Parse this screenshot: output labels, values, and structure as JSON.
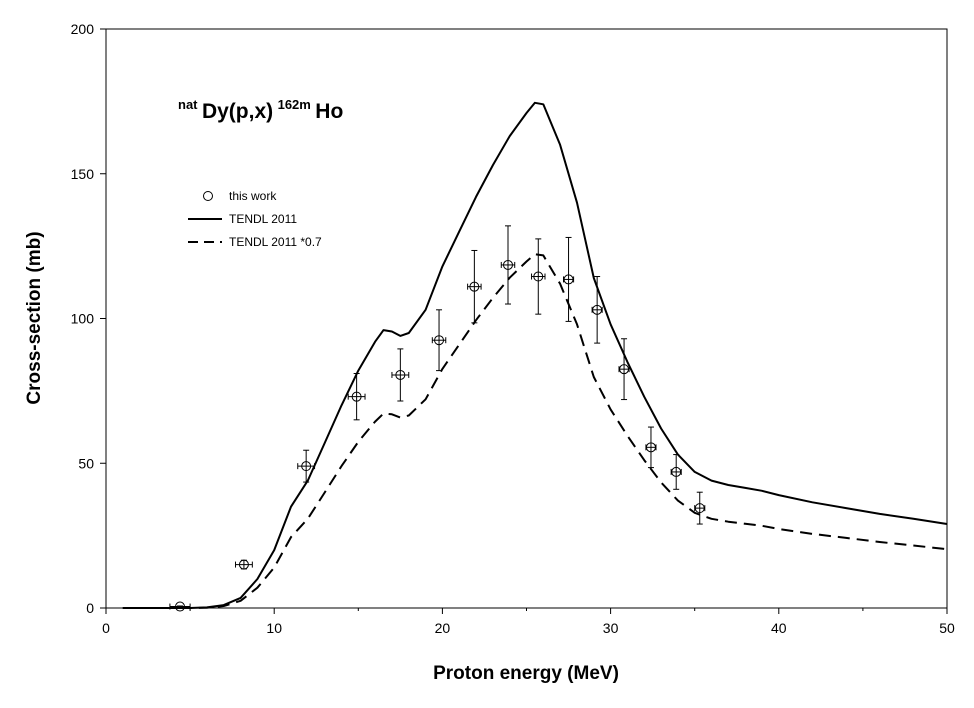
{
  "chart_data": {
    "type": "scatter",
    "title": "",
    "reaction_label": {
      "pre_sup": "nat",
      "base1": "Dy(p,x)",
      "mid_sup": "162m",
      "base2": "Ho"
    },
    "xlabel": "Proton energy (MeV)",
    "ylabel": "Cross-section (mb)",
    "xlim": [
      0,
      50
    ],
    "ylim": [
      0,
      200
    ],
    "xticks": [
      0,
      10,
      20,
      30,
      40,
      50
    ],
    "yticks": [
      0,
      50,
      100,
      150,
      200
    ],
    "grid": false,
    "legend_position": "upper-left",
    "series": [
      {
        "name": "this work",
        "kind": "points",
        "marker": "open-circle",
        "points": [
          {
            "x": 4.4,
            "y": 0.5,
            "xerr": 0.6,
            "yerr": 0.2
          },
          {
            "x": 8.2,
            "y": 15.0,
            "xerr": 0.5,
            "yerr": 1.5
          },
          {
            "x": 11.9,
            "y": 49.0,
            "xerr": 0.5,
            "yerr": 5.5
          },
          {
            "x": 14.9,
            "y": 73.0,
            "xerr": 0.5,
            "yerr": 8.0
          },
          {
            "x": 17.5,
            "y": 80.5,
            "xerr": 0.5,
            "yerr": 9.0
          },
          {
            "x": 19.8,
            "y": 92.5,
            "xerr": 0.4,
            "yerr": 10.5
          },
          {
            "x": 21.9,
            "y": 111.0,
            "xerr": 0.4,
            "yerr": 12.5
          },
          {
            "x": 23.9,
            "y": 118.5,
            "xerr": 0.4,
            "yerr": 13.5
          },
          {
            "x": 25.7,
            "y": 114.5,
            "xerr": 0.4,
            "yerr": 13.0
          },
          {
            "x": 27.5,
            "y": 113.5,
            "xerr": 0.3,
            "yerr": 14.5
          },
          {
            "x": 29.2,
            "y": 103.0,
            "xerr": 0.3,
            "yerr": 11.5
          },
          {
            "x": 30.8,
            "y": 82.5,
            "xerr": 0.3,
            "yerr": 10.5
          },
          {
            "x": 32.4,
            "y": 55.5,
            "xerr": 0.3,
            "yerr": 7.0
          },
          {
            "x": 33.9,
            "y": 47.0,
            "xerr": 0.3,
            "yerr": 6.0
          },
          {
            "x": 35.3,
            "y": 34.5,
            "xerr": 0.3,
            "yerr": 5.5
          }
        ]
      },
      {
        "name": "TENDL 2011",
        "kind": "line",
        "dash": "solid",
        "x": [
          1,
          2,
          3,
          4,
          5,
          6,
          7,
          8,
          9,
          10,
          11,
          12,
          13,
          14,
          15,
          16,
          16.5,
          17,
          17.5,
          18,
          19,
          20,
          21,
          22,
          23,
          24,
          25,
          25.5,
          26,
          27,
          28,
          29,
          30,
          31,
          32,
          33,
          34,
          35,
          36,
          37,
          38,
          39,
          40,
          42,
          44,
          46,
          48,
          50
        ],
        "y": [
          0,
          0,
          0,
          0,
          0,
          0.2,
          1,
          3.5,
          10,
          20,
          35,
          44,
          57,
          70,
          82,
          92,
          96,
          95.5,
          94,
          95,
          103,
          118,
          130,
          142,
          153,
          163,
          171,
          174.5,
          174,
          160,
          140,
          114,
          98,
          85,
          73,
          62,
          53,
          47,
          44,
          42.5,
          41.5,
          40.5,
          39,
          36.5,
          34.5,
          32.5,
          30.8,
          29
        ]
      },
      {
        "name": "TENDL 2011 *0.7",
        "kind": "line",
        "dash": "dashed",
        "x": [
          1,
          2,
          3,
          4,
          5,
          6,
          7,
          8,
          9,
          10,
          11,
          12,
          13,
          14,
          15,
          16,
          16.5,
          17,
          17.5,
          18,
          19,
          20,
          21,
          22,
          23,
          24,
          25,
          25.5,
          26,
          27,
          28,
          29,
          30,
          31,
          32,
          33,
          34,
          35,
          36,
          37,
          38,
          39,
          40,
          42,
          44,
          46,
          48,
          50
        ],
        "y": [
          0,
          0,
          0,
          0,
          0,
          0.1,
          0.7,
          2.5,
          7,
          14,
          24.5,
          30.8,
          39.9,
          49,
          57.4,
          64.4,
          67.2,
          66.9,
          65.8,
          66.5,
          72.1,
          82.6,
          91,
          99.4,
          107.1,
          114.1,
          119.7,
          122.2,
          121.8,
          112,
          98,
          79.8,
          68.6,
          59.5,
          51.1,
          43.4,
          37.1,
          32.9,
          30.8,
          29.8,
          29.1,
          28.4,
          27.3,
          25.6,
          24.2,
          22.8,
          21.6,
          20.3
        ]
      }
    ]
  }
}
